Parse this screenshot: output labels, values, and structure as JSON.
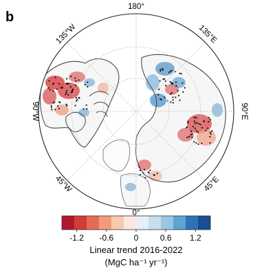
{
  "panel_label": "b",
  "longitude_labels": {
    "top": "180°",
    "bottom": "0°",
    "left": "90°W",
    "right": "90°E",
    "upper_left": "135°W",
    "upper_right": "135°E",
    "lower_left": "45°W",
    "lower_right": "45°E"
  },
  "colorbar": {
    "colors": [
      "#b3172b",
      "#cf3d3a",
      "#e46a54",
      "#f39a7c",
      "#f8c8af",
      "#fde7dc",
      "#e6f0f7",
      "#c6deed",
      "#98c7e1",
      "#5fa3d0",
      "#2d74b5",
      "#174f93"
    ],
    "tick_labels": [
      "-1.2",
      "-0.6",
      "0",
      "0.6",
      "1.2"
    ],
    "title_line1": "Linear trend 2016-2022",
    "title_line2": "(MgC ha⁻¹ yr⁻¹)"
  },
  "map_colors": {
    "frame": "#222222",
    "graticule": "#bbbbbb",
    "coastline": "#555555",
    "dot": "#111111",
    "negative": "#d9494a",
    "positive": "#4d92c8"
  }
}
